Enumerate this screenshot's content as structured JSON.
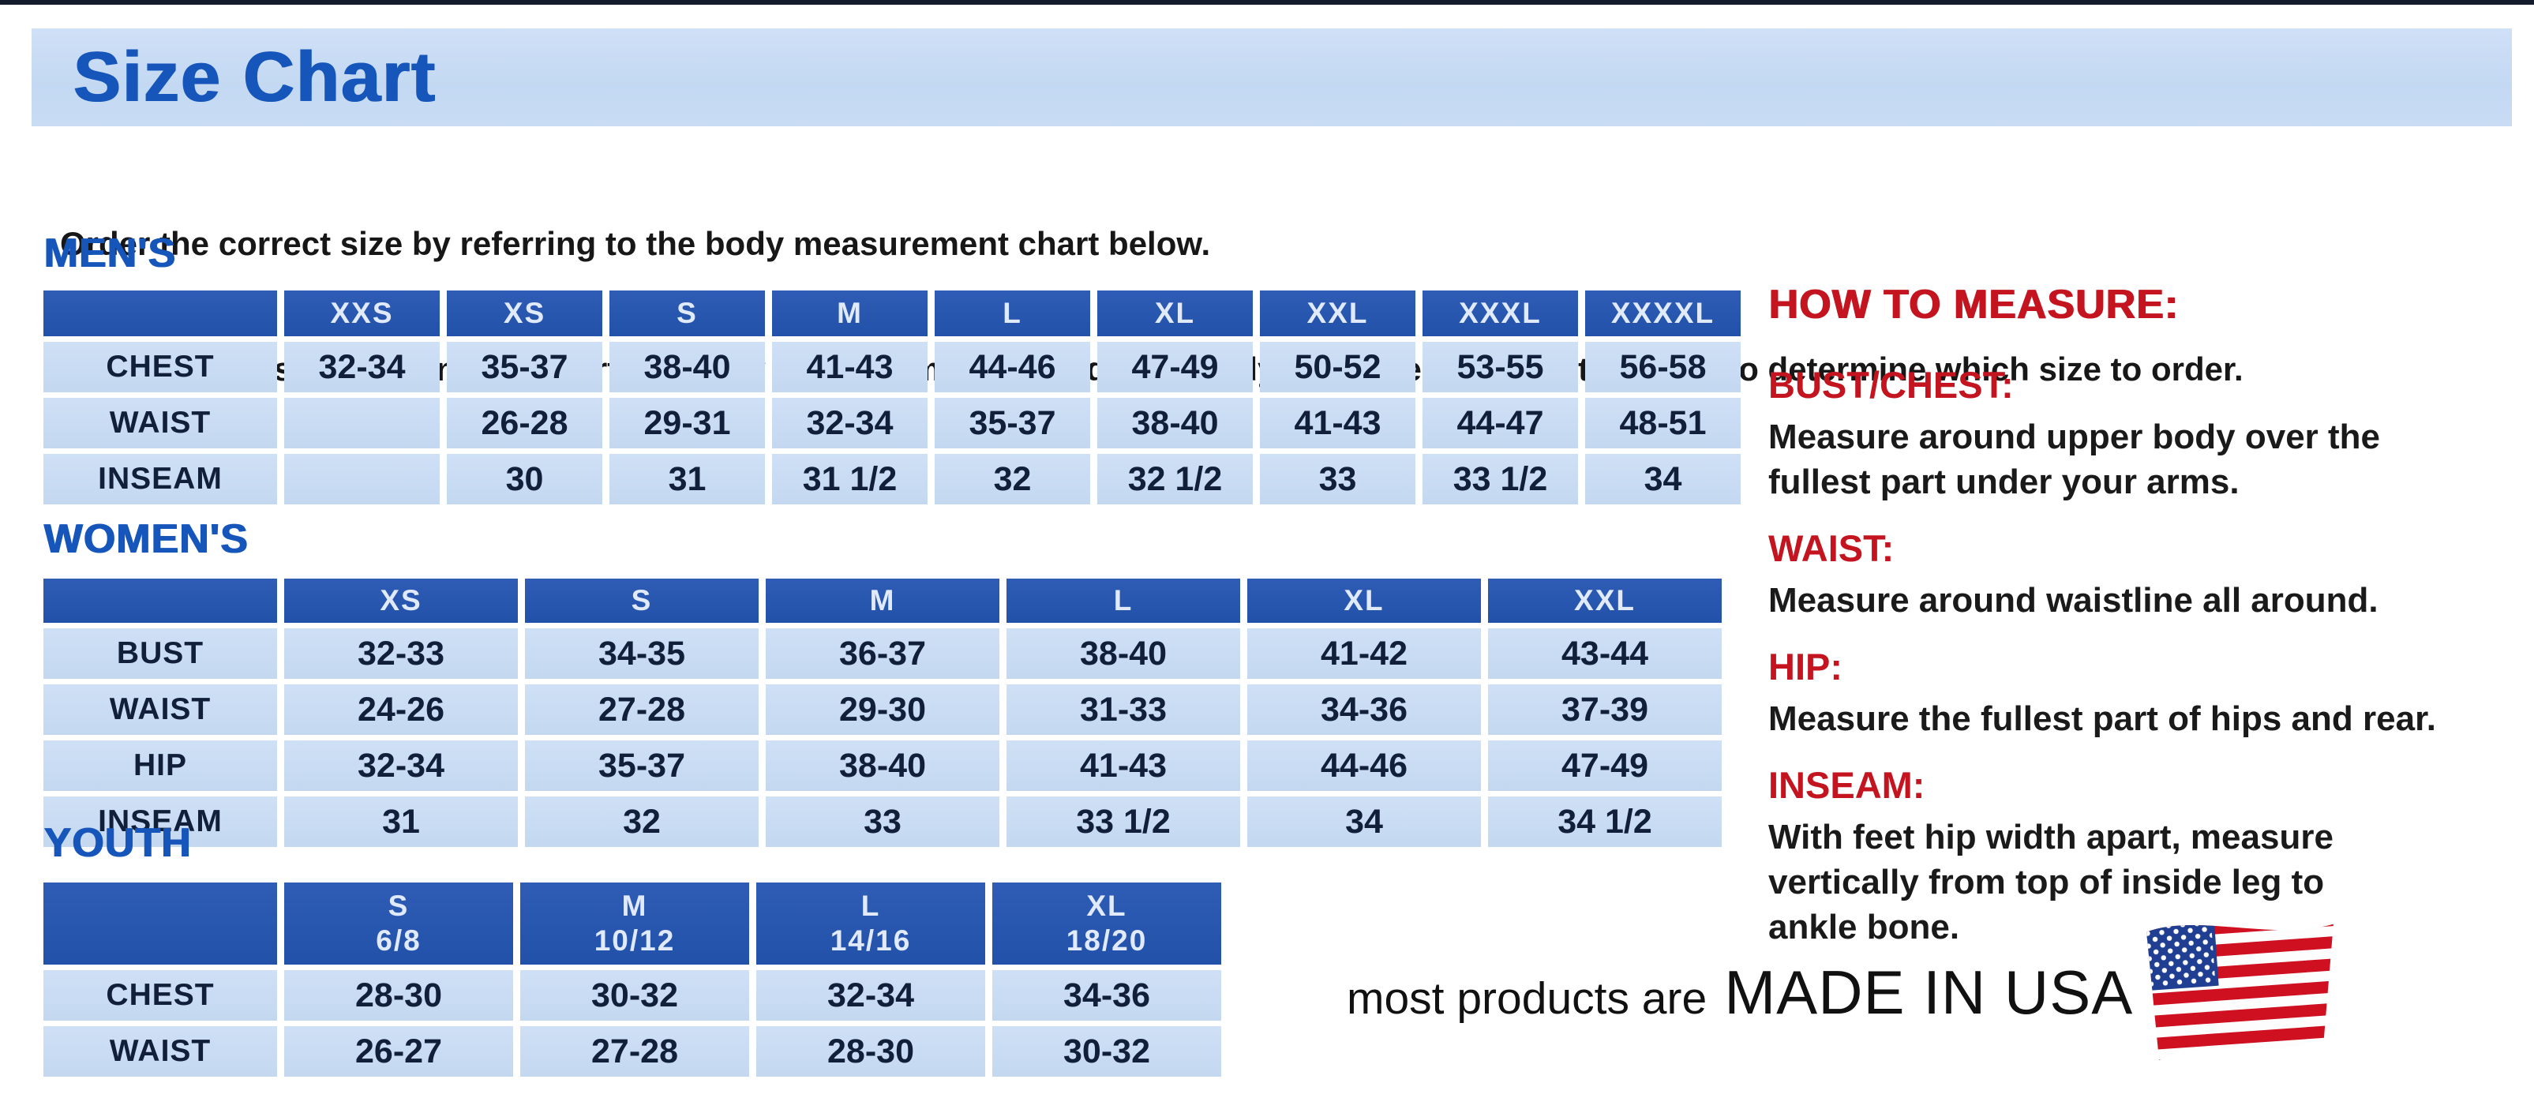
{
  "banner": {
    "title": "Size Chart"
  },
  "intro": {
    "line1": "Order the correct size by referring to the body measurement chart below.",
    "line2": "Measurements shown on size chart are body measurements.  Find your body measurements on the chart to determine which size to order."
  },
  "tables": [
    {
      "id": "mens",
      "heading": "MEN'S",
      "columns": [
        "XXS",
        "XS",
        "S",
        "M",
        "L",
        "XL",
        "XXL",
        "XXXL",
        "XXXXL"
      ],
      "rows": [
        {
          "label": "CHEST",
          "values": [
            "32-34",
            "35-37",
            "38-40",
            "41-43",
            "44-46",
            "47-49",
            "50-52",
            "53-55",
            "56-58"
          ]
        },
        {
          "label": "WAIST",
          "values": [
            "",
            "26-28",
            "29-31",
            "32-34",
            "35-37",
            "38-40",
            "41-43",
            "44-47",
            "48-51"
          ]
        },
        {
          "label": "INSEAM",
          "values": [
            "",
            "30",
            "31",
            "31 1/2",
            "32",
            "32 1/2",
            "33",
            "33 1/2",
            "34"
          ]
        }
      ]
    },
    {
      "id": "womens",
      "heading": "WOMEN'S",
      "columns": [
        "XS",
        "S",
        "M",
        "L",
        "XL",
        "XXL"
      ],
      "rows": [
        {
          "label": "BUST",
          "values": [
            "32-33",
            "34-35",
            "36-37",
            "38-40",
            "41-42",
            "43-44"
          ]
        },
        {
          "label": "WAIST",
          "values": [
            "24-26",
            "27-28",
            "29-30",
            "31-33",
            "34-36",
            "37-39"
          ]
        },
        {
          "label": "HIP",
          "values": [
            "32-34",
            "35-37",
            "38-40",
            "41-43",
            "44-46",
            "47-49"
          ]
        },
        {
          "label": "INSEAM",
          "values": [
            "31",
            "32",
            "33",
            "33 1/2",
            "34",
            "34 1/2"
          ]
        }
      ]
    },
    {
      "id": "youth",
      "heading": "YOUTH",
      "columns": [
        "S\n6/8",
        "M\n10/12",
        "L\n14/16",
        "XL\n18/20"
      ],
      "rows": [
        {
          "label": "CHEST",
          "values": [
            "28-30",
            "30-32",
            "32-34",
            "34-36"
          ]
        },
        {
          "label": "WAIST",
          "values": [
            "26-27",
            "27-28",
            "28-30",
            "30-32"
          ]
        }
      ]
    }
  ],
  "how_to_measure": {
    "heading": "HOW TO MEASURE:",
    "items": [
      {
        "term": "BUST/CHEST:",
        "lines": [
          "Measure around upper body over the",
          "fullest part under your arms."
        ]
      },
      {
        "term": "WAIST:",
        "lines": [
          "Measure around waistline all around."
        ]
      },
      {
        "term": "HIP:",
        "lines": [
          "Measure the fullest part of hips and rear."
        ]
      },
      {
        "term": "INSEAM:",
        "lines": [
          "With feet hip width apart, measure",
          "vertically from top of inside leg to",
          "ankle bone."
        ]
      }
    ]
  },
  "footer": {
    "prefix": "most products are",
    "emphasis": "MADE IN USA",
    "flag_icon": "us-flag-icon"
  },
  "colors": {
    "header_blue": "#2456b0",
    "cell_blue": "#c9dcf3",
    "banner_blue": "#c6dbf4",
    "title_blue": "#1656bb",
    "accent_red": "#c3141f",
    "flag_red": "#cf1020",
    "flag_navy": "#203e92"
  }
}
